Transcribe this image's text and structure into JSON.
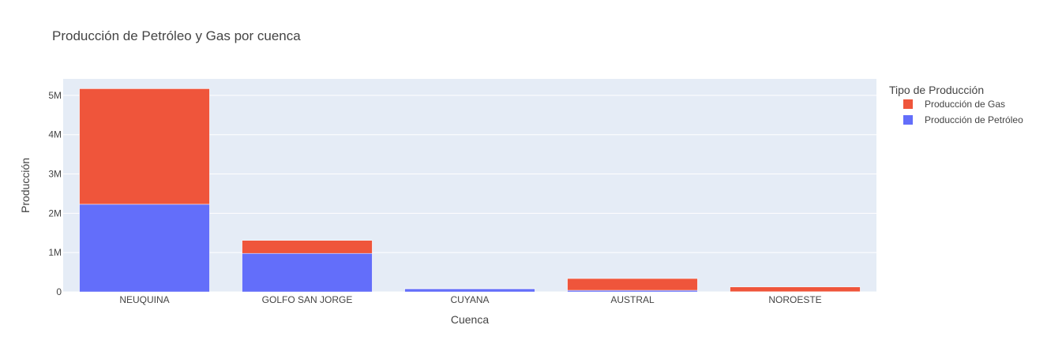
{
  "chart_data": {
    "type": "bar",
    "stacked": true,
    "title": "Producción de Petróleo y Gas por cuenca",
    "xlabel": "Cuenca",
    "ylabel": "Producción",
    "categories": [
      "NEUQUINA",
      "GOLFO SAN JORGE",
      "CUYANA",
      "AUSTRAL",
      "NOROESTE"
    ],
    "series": [
      {
        "name": "Producción de Petróleo",
        "color": "#636efa",
        "values": [
          2230000,
          980000,
          80000,
          40000,
          5000
        ]
      },
      {
        "name": "Producción de Gas",
        "color": "#ef553b",
        "values": [
          2940000,
          330000,
          5000,
          300000,
          120000
        ]
      }
    ],
    "ylim": [
      0,
      5420000
    ],
    "yticks": [
      0,
      1000000,
      2000000,
      3000000,
      4000000,
      5000000
    ],
    "ytick_labels": [
      "0",
      "1M",
      "2M",
      "3M",
      "4M",
      "5M"
    ],
    "legend_title": "Tipo de Producción",
    "legend_order": [
      1,
      0
    ],
    "legend_position": "right",
    "grid": true,
    "plot_bg": "#e5ecf6",
    "grid_color": "#ffffff"
  }
}
